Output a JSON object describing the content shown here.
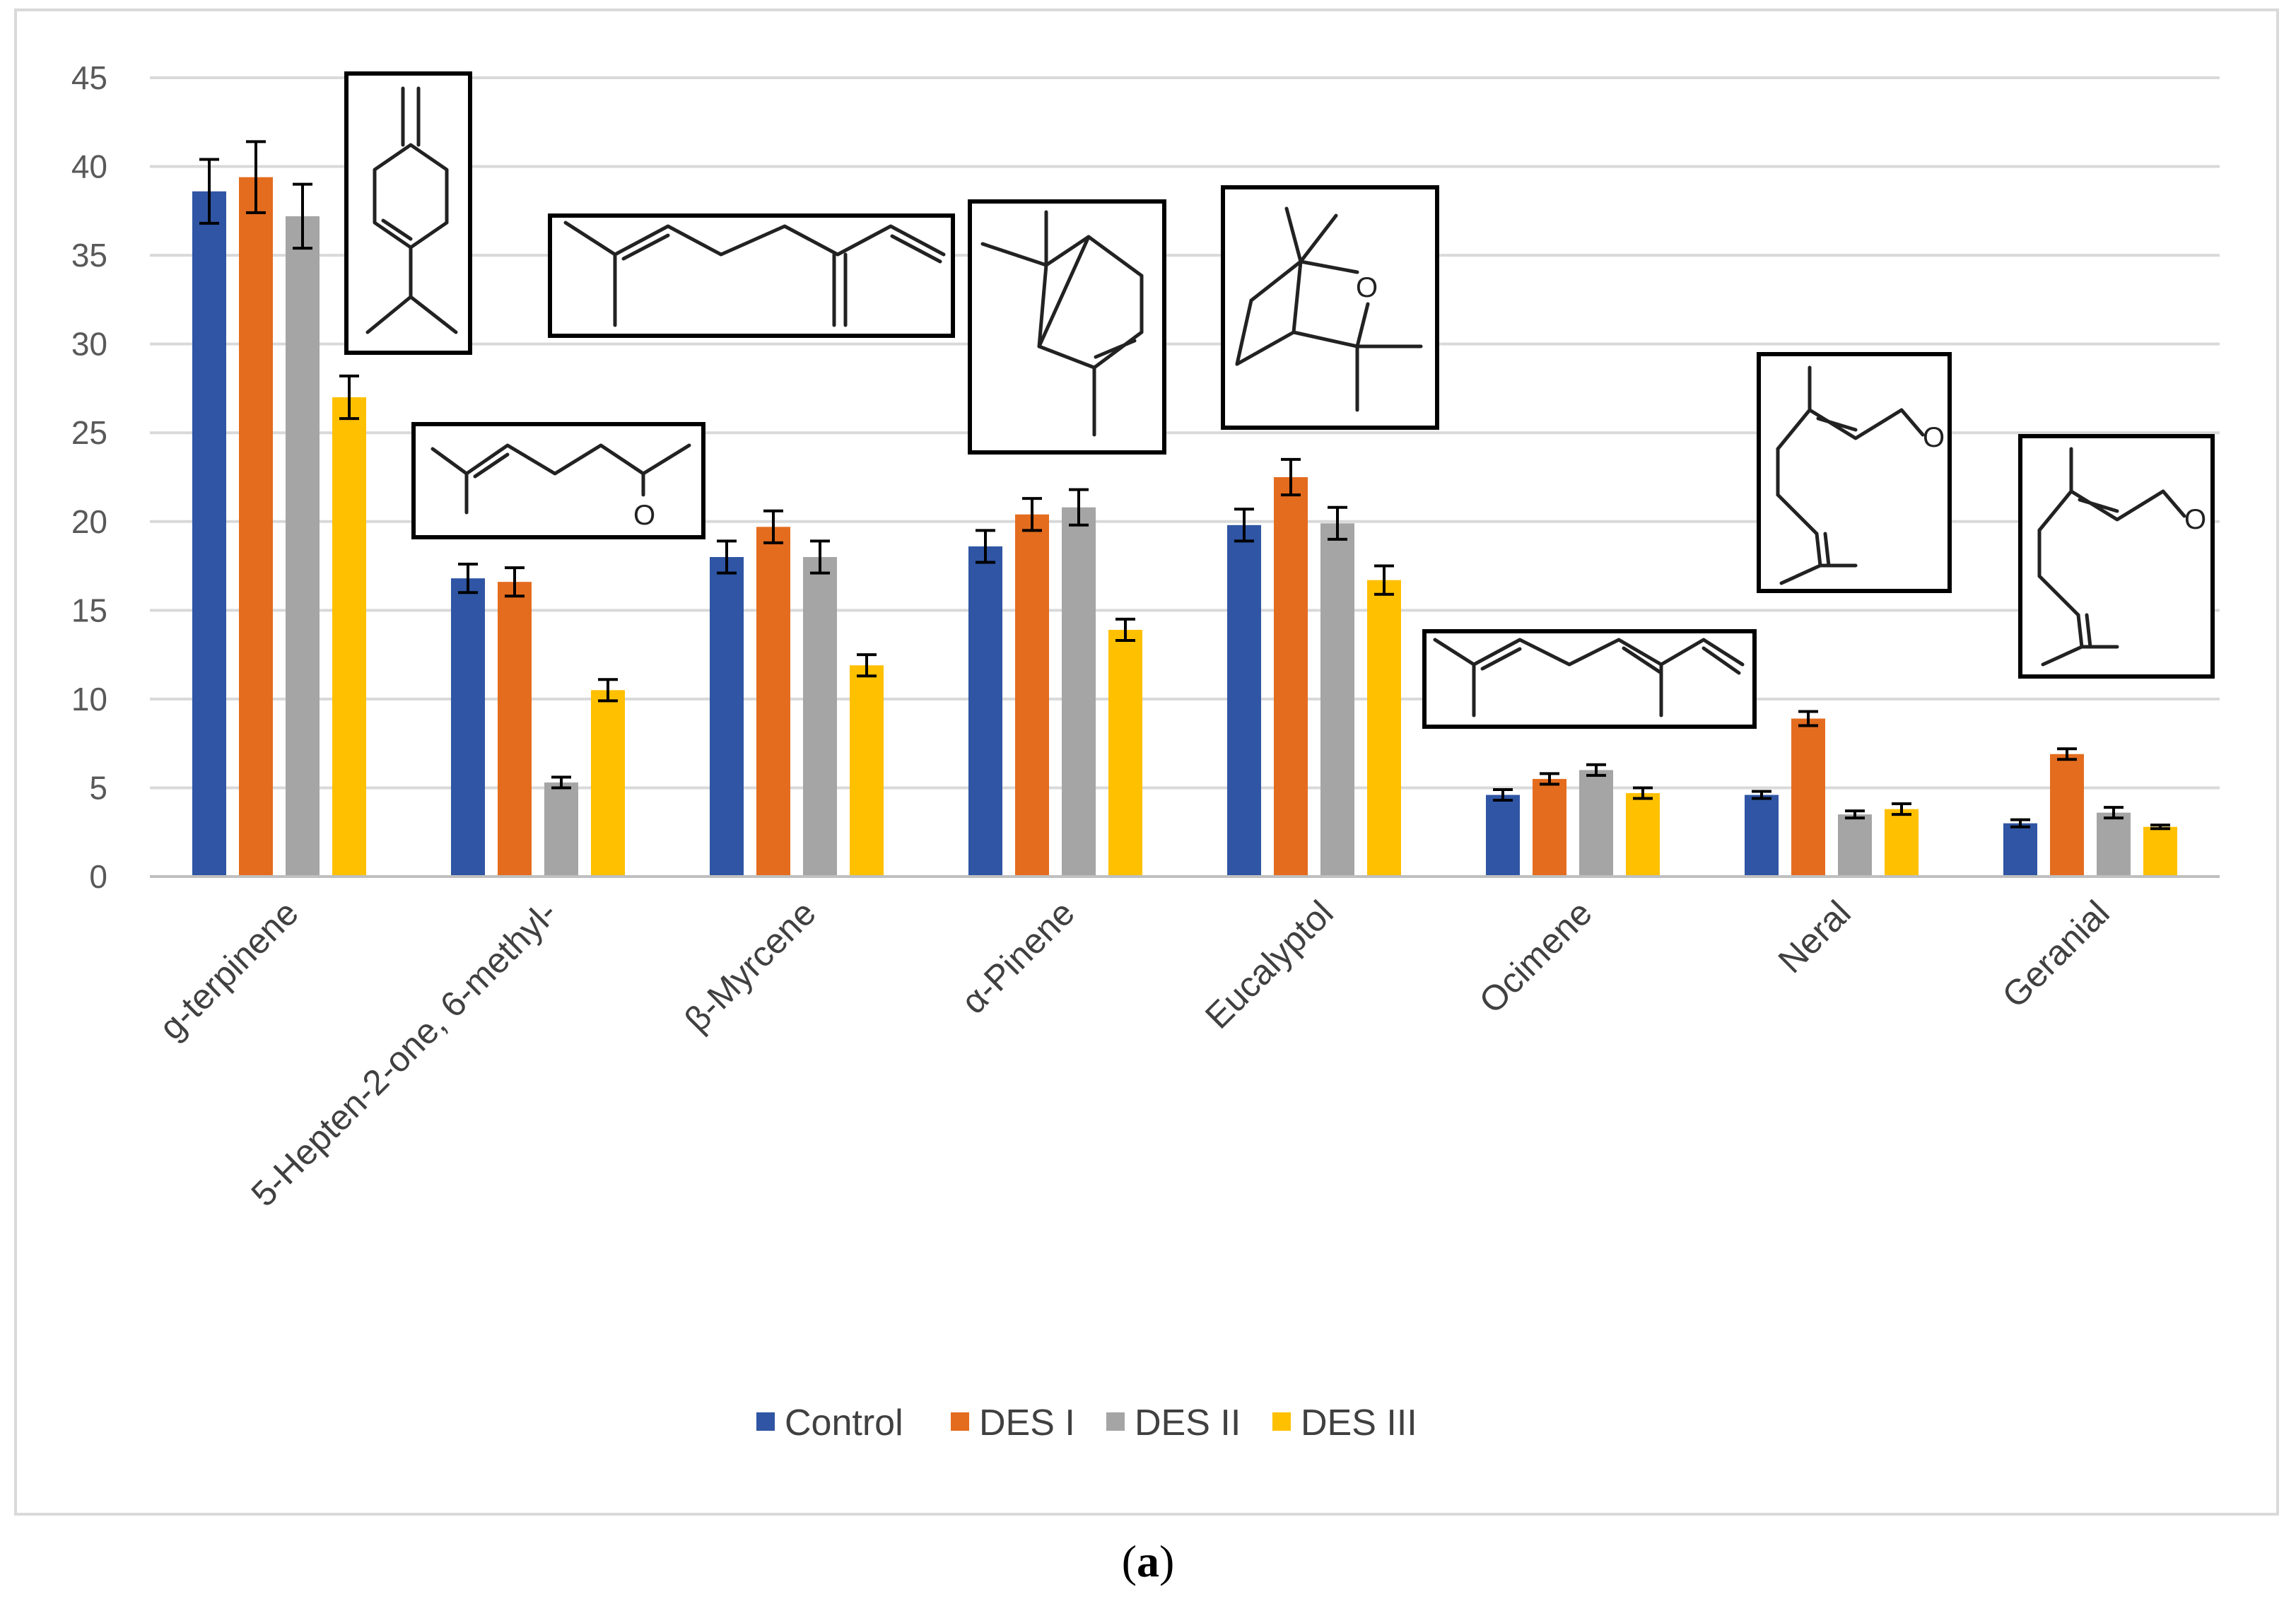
{
  "chart_data": {
    "type": "bar",
    "categories": [
      "g-terpinene",
      "5-Hepten-2-one, 6-methyl-",
      "β-Myrcene",
      "α-Pinene",
      "Eucalyptol",
      "Ocimene",
      "Neral",
      "Geranial"
    ],
    "series": [
      {
        "name": "Control",
        "color": "#2f55a4",
        "values": [
          38.6,
          16.8,
          18.0,
          18.6,
          19.8,
          4.6,
          4.6,
          3.0
        ],
        "errors": [
          1.8,
          0.8,
          0.9,
          0.9,
          0.9,
          0.3,
          0.2,
          0.2
        ]
      },
      {
        "name": "DES I",
        "color": "#e46c1e",
        "values": [
          39.4,
          16.6,
          19.7,
          20.4,
          22.5,
          5.5,
          8.9,
          6.9
        ],
        "errors": [
          2.0,
          0.8,
          0.9,
          0.9,
          1.0,
          0.3,
          0.4,
          0.3
        ]
      },
      {
        "name": "DES II",
        "color": "#a5a5a5",
        "values": [
          37.2,
          5.3,
          18.0,
          20.8,
          19.9,
          6.0,
          3.5,
          3.6
        ],
        "errors": [
          1.8,
          0.3,
          0.9,
          1.0,
          0.9,
          0.3,
          0.2,
          0.3
        ]
      },
      {
        "name": "DES III",
        "color": "#ffc000",
        "values": [
          27.0,
          10.5,
          11.9,
          13.9,
          16.7,
          4.7,
          3.8,
          2.8
        ],
        "errors": [
          1.2,
          0.6,
          0.6,
          0.6,
          0.8,
          0.3,
          0.3,
          0.1
        ]
      }
    ],
    "ylim": [
      0,
      45
    ],
    "yticks": [
      0,
      5,
      10,
      15,
      20,
      25,
      30,
      35,
      40,
      45
    ],
    "grid": true,
    "legend_position": "bottom",
    "title": "",
    "xlabel": "",
    "ylabel": ""
  },
  "structures": [
    {
      "category": "g-terpinene",
      "compound": "γ-terpinene"
    },
    {
      "category": "5-Hepten-2-one, 6-methyl-",
      "compound": "6-methyl-5-hepten-2-one",
      "atom_label": "O"
    },
    {
      "category": "β-Myrcene",
      "compound": "β-myrcene"
    },
    {
      "category": "α-Pinene",
      "compound": "α-pinene"
    },
    {
      "category": "Eucalyptol",
      "compound": "1,8-cineole",
      "atom_label": "O"
    },
    {
      "category": "Ocimene",
      "compound": "ocimene"
    },
    {
      "category": "Neral",
      "compound": "neral",
      "atom_label": "O"
    },
    {
      "category": "Geranial",
      "compound": "geranial",
      "atom_label": "O"
    }
  ],
  "caption_letter": "a",
  "caption_open": "(",
  "caption_close": ")"
}
